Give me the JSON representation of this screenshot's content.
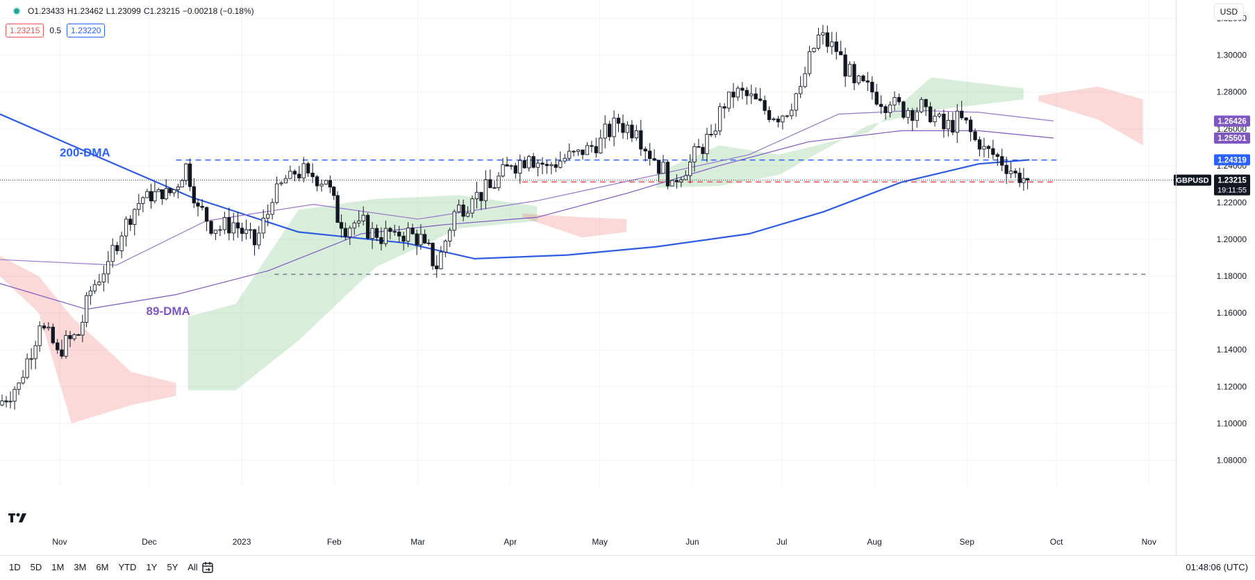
{
  "header": {
    "ohlc": {
      "open": "O1.23433",
      "high": "H1.23462",
      "low": "L1.23099",
      "close": "C1.23215",
      "change": "−0.00218 (−0.18%)"
    },
    "bid": "1.23215",
    "spread": "0.5",
    "ask": "1.23220",
    "currency": "USD"
  },
  "timeframes": [
    "1D",
    "5D",
    "1M",
    "3M",
    "6M",
    "YTD",
    "1Y",
    "5Y",
    "All"
  ],
  "clock": "01:48:06 (UTC)",
  "chart_data": {
    "type": "candlestick",
    "symbol": "GBPUSD",
    "ylim": [
      1.07,
      1.33
    ],
    "yticks": [
      1.08,
      1.1,
      1.12,
      1.14,
      1.16,
      1.18,
      1.2,
      1.22,
      1.24,
      1.26,
      1.28,
      1.3,
      1.32
    ],
    "ytick_labels": [
      "1.08000",
      "1.10000",
      "1.12000",
      "1.14000",
      "1.16000",
      "1.18000",
      "1.20000",
      "1.22000",
      "1.24000",
      "1.26000",
      "1.28000",
      "1.30000",
      "1.32000"
    ],
    "xlim": [
      "2022-10-12",
      "2023-11-10"
    ],
    "xticks": [
      {
        "label": "Nov",
        "date": "2022-11-01"
      },
      {
        "label": "Dec",
        "date": "2022-12-01"
      },
      {
        "label": "2023",
        "date": "2023-01-01"
      },
      {
        "label": "Feb",
        "date": "2023-02-01"
      },
      {
        "label": "Mar",
        "date": "2023-03-01"
      },
      {
        "label": "Apr",
        "date": "2023-04-01"
      },
      {
        "label": "May",
        "date": "2023-05-01"
      },
      {
        "label": "Jun",
        "date": "2023-06-01"
      },
      {
        "label": "Jul",
        "date": "2023-07-01"
      },
      {
        "label": "Aug",
        "date": "2023-08-01"
      },
      {
        "label": "Sep",
        "date": "2023-09-01"
      },
      {
        "label": "Oct",
        "date": "2023-10-01"
      },
      {
        "label": "Nov",
        "date": "2023-11-01"
      }
    ],
    "closes": [
      {
        "date": "2022-10-12",
        "close": 1.11
      },
      {
        "date": "2022-10-19",
        "close": 1.122
      },
      {
        "date": "2022-10-26",
        "close": 1.153
      },
      {
        "date": "2022-11-01",
        "close": 1.14
      },
      {
        "date": "2022-11-08",
        "close": 1.148
      },
      {
        "date": "2022-11-12",
        "close": 1.172
      },
      {
        "date": "2022-11-18",
        "close": 1.188
      },
      {
        "date": "2022-11-24",
        "close": 1.211
      },
      {
        "date": "2022-12-01",
        "close": 1.226
      },
      {
        "date": "2022-12-06",
        "close": 1.222
      },
      {
        "date": "2022-12-10",
        "close": 1.227
      },
      {
        "date": "2022-12-14",
        "close": 1.241
      },
      {
        "date": "2022-12-18",
        "close": 1.218
      },
      {
        "date": "2022-12-24",
        "close": 1.205
      },
      {
        "date": "2022-12-30",
        "close": 1.209
      },
      {
        "date": "2023-01-06",
        "close": 1.197
      },
      {
        "date": "2023-01-12",
        "close": 1.22
      },
      {
        "date": "2023-01-18",
        "close": 1.237
      },
      {
        "date": "2023-01-24",
        "close": 1.236
      },
      {
        "date": "2023-01-30",
        "close": 1.232
      },
      {
        "date": "2023-02-04",
        "close": 1.206
      },
      {
        "date": "2023-02-10",
        "close": 1.21
      },
      {
        "date": "2023-02-16",
        "close": 1.201
      },
      {
        "date": "2023-02-22",
        "close": 1.204
      },
      {
        "date": "2023-02-28",
        "close": 1.203
      },
      {
        "date": "2023-03-04",
        "close": 1.198
      },
      {
        "date": "2023-03-08",
        "close": 1.184
      },
      {
        "date": "2023-03-14",
        "close": 1.215
      },
      {
        "date": "2023-03-20",
        "close": 1.222
      },
      {
        "date": "2023-03-26",
        "close": 1.228
      },
      {
        "date": "2023-04-02",
        "close": 1.24
      },
      {
        "date": "2023-04-08",
        "close": 1.245
      },
      {
        "date": "2023-04-14",
        "close": 1.24
      },
      {
        "date": "2023-04-20",
        "close": 1.244
      },
      {
        "date": "2023-04-26",
        "close": 1.246
      },
      {
        "date": "2023-05-02",
        "close": 1.255
      },
      {
        "date": "2023-05-08",
        "close": 1.263
      },
      {
        "date": "2023-05-14",
        "close": 1.259
      },
      {
        "date": "2023-05-20",
        "close": 1.243
      },
      {
        "date": "2023-05-26",
        "close": 1.232
      },
      {
        "date": "2023-06-01",
        "close": 1.242
      },
      {
        "date": "2023-06-08",
        "close": 1.257
      },
      {
        "date": "2023-06-14",
        "close": 1.28
      },
      {
        "date": "2023-06-20",
        "close": 1.278
      },
      {
        "date": "2023-06-26",
        "close": 1.27
      },
      {
        "date": "2023-07-02",
        "close": 1.267
      },
      {
        "date": "2023-07-08",
        "close": 1.283
      },
      {
        "date": "2023-07-14",
        "close": 1.311
      },
      {
        "date": "2023-07-20",
        "close": 1.302
      },
      {
        "date": "2023-07-26",
        "close": 1.285
      },
      {
        "date": "2023-08-01",
        "close": 1.28
      },
      {
        "date": "2023-08-07",
        "close": 1.273
      },
      {
        "date": "2023-08-13",
        "close": 1.27
      },
      {
        "date": "2023-08-19",
        "close": 1.272
      },
      {
        "date": "2023-08-25",
        "close": 1.26
      },
      {
        "date": "2023-08-31",
        "close": 1.266
      },
      {
        "date": "2023-09-06",
        "close": 1.249
      },
      {
        "date": "2023-09-12",
        "close": 1.245
      },
      {
        "date": "2023-09-18",
        "close": 1.236
      },
      {
        "date": "2023-09-22",
        "close": 1.2322
      }
    ],
    "indicators": [
      {
        "label": "200-DMA",
        "color": "#2d5be3",
        "values": [
          {
            "date": "2022-10-12",
            "v": 1.268
          },
          {
            "date": "2022-11-15",
            "v": 1.244
          },
          {
            "date": "2022-12-15",
            "v": 1.223
          },
          {
            "date": "2023-01-20",
            "v": 1.204
          },
          {
            "date": "2023-02-25",
            "v": 1.198
          },
          {
            "date": "2023-03-20",
            "v": 1.1895
          },
          {
            "date": "2023-04-20",
            "v": 1.1915
          },
          {
            "date": "2023-05-20",
            "v": 1.196
          },
          {
            "date": "2023-06-20",
            "v": 1.203
          },
          {
            "date": "2023-07-15",
            "v": 1.215
          },
          {
            "date": "2023-08-10",
            "v": 1.231
          },
          {
            "date": "2023-09-05",
            "v": 1.241
          },
          {
            "date": "2023-09-22",
            "v": 1.2432
          }
        ]
      },
      {
        "label": "89-DMA",
        "color": "#7e57c2",
        "values": [
          {
            "date": "2022-10-12",
            "v": 1.176
          },
          {
            "date": "2022-11-10",
            "v": 1.162
          },
          {
            "date": "2022-12-10",
            "v": 1.17
          },
          {
            "date": "2023-01-10",
            "v": 1.183
          },
          {
            "date": "2023-02-10",
            "v": 1.203
          },
          {
            "date": "2023-03-10",
            "v": 1.208
          },
          {
            "date": "2023-04-10",
            "v": 1.212
          },
          {
            "date": "2023-05-10",
            "v": 1.225
          },
          {
            "date": "2023-06-10",
            "v": 1.24
          },
          {
            "date": "2023-07-10",
            "v": 1.253
          },
          {
            "date": "2023-08-10",
            "v": 1.259
          },
          {
            "date": "2023-09-05",
            "v": 1.259
          },
          {
            "date": "2023-09-30",
            "v": 1.255
          }
        ]
      },
      {
        "color": "#9575cd",
        "values": [
          {
            "date": "2022-10-12",
            "v": 1.189
          },
          {
            "date": "2022-11-20",
            "v": 1.186
          },
          {
            "date": "2022-12-20",
            "v": 1.21
          },
          {
            "date": "2023-01-25",
            "v": 1.219
          },
          {
            "date": "2023-03-01",
            "v": 1.211
          },
          {
            "date": "2023-04-10",
            "v": 1.221
          },
          {
            "date": "2023-05-20",
            "v": 1.235
          },
          {
            "date": "2023-06-20",
            "v": 1.246
          },
          {
            "date": "2023-07-20",
            "v": 1.268
          },
          {
            "date": "2023-08-15",
            "v": 1.27
          },
          {
            "date": "2023-09-05",
            "v": 1.269
          },
          {
            "date": "2023-09-30",
            "v": 1.2643
          }
        ]
      }
    ],
    "cloud_green": [
      {
        "date": "2022-12-14",
        "top": 1.158,
        "bottom": 1.118
      },
      {
        "date": "2022-12-30",
        "top": 1.165,
        "bottom": 1.118
      },
      {
        "date": "2023-01-20",
        "top": 1.216,
        "bottom": 1.145
      },
      {
        "date": "2023-02-15",
        "top": 1.222,
        "bottom": 1.185
      },
      {
        "date": "2023-03-15",
        "top": 1.224,
        "bottom": 1.206
      },
      {
        "date": "2023-04-10",
        "top": 1.218,
        "bottom": 1.21
      }
    ],
    "cloud_green2": [
      {
        "date": "2023-05-20",
        "top": 1.236,
        "bottom": 1.228
      },
      {
        "date": "2023-06-10",
        "top": 1.251,
        "bottom": 1.229
      },
      {
        "date": "2023-06-30",
        "top": 1.246,
        "bottom": 1.235
      },
      {
        "date": "2023-07-30",
        "top": 1.258,
        "bottom": 1.262
      },
      {
        "date": "2023-08-20",
        "top": 1.288,
        "bottom": 1.27
      },
      {
        "date": "2023-09-20",
        "top": 1.282,
        "bottom": 1.276
      }
    ],
    "cloud_red": [
      {
        "date": "2022-10-12",
        "top": 1.191,
        "bottom": 1.18
      },
      {
        "date": "2022-10-25",
        "top": 1.18,
        "bottom": 1.16
      },
      {
        "date": "2022-11-05",
        "top": 1.158,
        "bottom": 1.1
      },
      {
        "date": "2022-11-25",
        "top": 1.128,
        "bottom": 1.11
      },
      {
        "date": "2022-12-10",
        "top": 1.122,
        "bottom": 1.115
      }
    ],
    "cloud_red2": [
      {
        "date": "2023-04-05",
        "top": 1.214,
        "bottom": 1.212
      },
      {
        "date": "2023-04-25",
        "top": 1.212,
        "bottom": 1.201
      },
      {
        "date": "2023-05-10",
        "top": 1.211,
        "bottom": 1.204
      }
    ],
    "cloud_red3": [
      {
        "date": "2023-09-25",
        "top": 1.278,
        "bottom": 1.275
      },
      {
        "date": "2023-10-15",
        "top": 1.283,
        "bottom": 1.265
      },
      {
        "date": "2023-10-30",
        "top": 1.276,
        "bottom": 1.251
      }
    ],
    "hlines": [
      {
        "v": 1.2431,
        "from": "2022-12-10",
        "to": "2023-10-01",
        "color": "#2962ff",
        "dash": "8,6"
      },
      {
        "v": 1.2312,
        "from": "2023-04-05",
        "to": "2023-10-01",
        "color": "#ef5350",
        "dash": "8,6"
      },
      {
        "v": 1.181,
        "from": "2023-01-12",
        "to": "2023-10-31",
        "color": "#787b86",
        "dash": "6,6"
      }
    ],
    "annotations": [
      {
        "text": "200-DMA",
        "date": "2022-11-01",
        "v": 1.245,
        "color": "#2962ff"
      },
      {
        "text": "89-DMA",
        "date": "2022-11-30",
        "v": 1.159,
        "color": "#7e57c2"
      }
    ],
    "price_labels": [
      {
        "text": "1.26426",
        "v": 1.26426,
        "bg": "#7e57c2",
        "fg": "#ffffff"
      },
      {
        "text": "1.25501",
        "v": 1.25501,
        "bg": "#7e57c2",
        "fg": "#ffffff"
      },
      {
        "text": "1.24319",
        "v": 1.24319,
        "bg": "#2962ff",
        "fg": "#ffffff"
      },
      {
        "text": "1.23215",
        "v": 1.23215,
        "bg": "#131722",
        "fg": "#ffffff",
        "sub": "19:11:55",
        "tag": "GBPUSD"
      }
    ]
  }
}
